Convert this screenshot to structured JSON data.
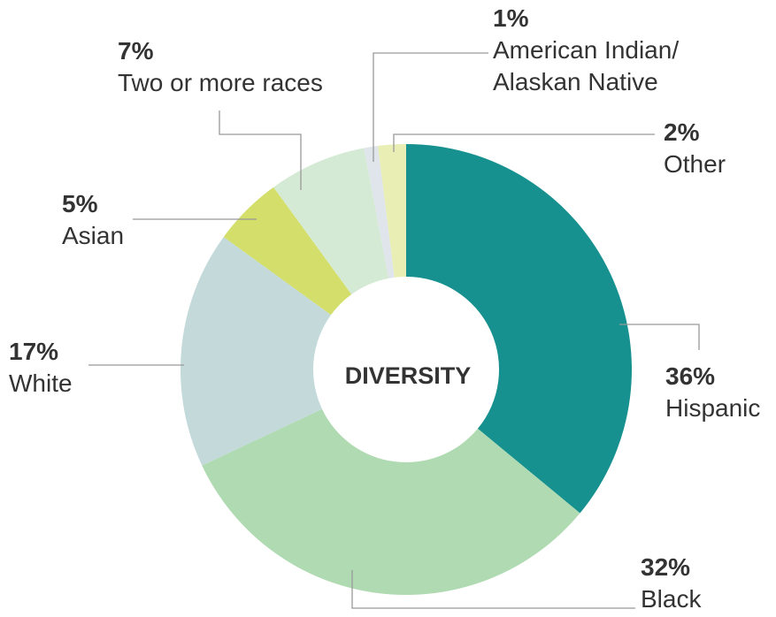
{
  "chart_data": {
    "type": "donut",
    "title": "DIVERSITY",
    "categories": [
      "Hispanic",
      "Black",
      "White",
      "Asian",
      "Two or more races",
      "American Indian/ Alaskan Native",
      "Other"
    ],
    "values": [
      36,
      32,
      17,
      5,
      7,
      1,
      2
    ],
    "value_labels": [
      "36%",
      "32%",
      "17%",
      "5%",
      "7%",
      "1%",
      "2%"
    ],
    "colors": [
      "#17918f",
      "#b0dab2",
      "#c3d9da",
      "#d3df6a",
      "#d5ead5",
      "#dfe5ea",
      "#e9efb4"
    ]
  }
}
